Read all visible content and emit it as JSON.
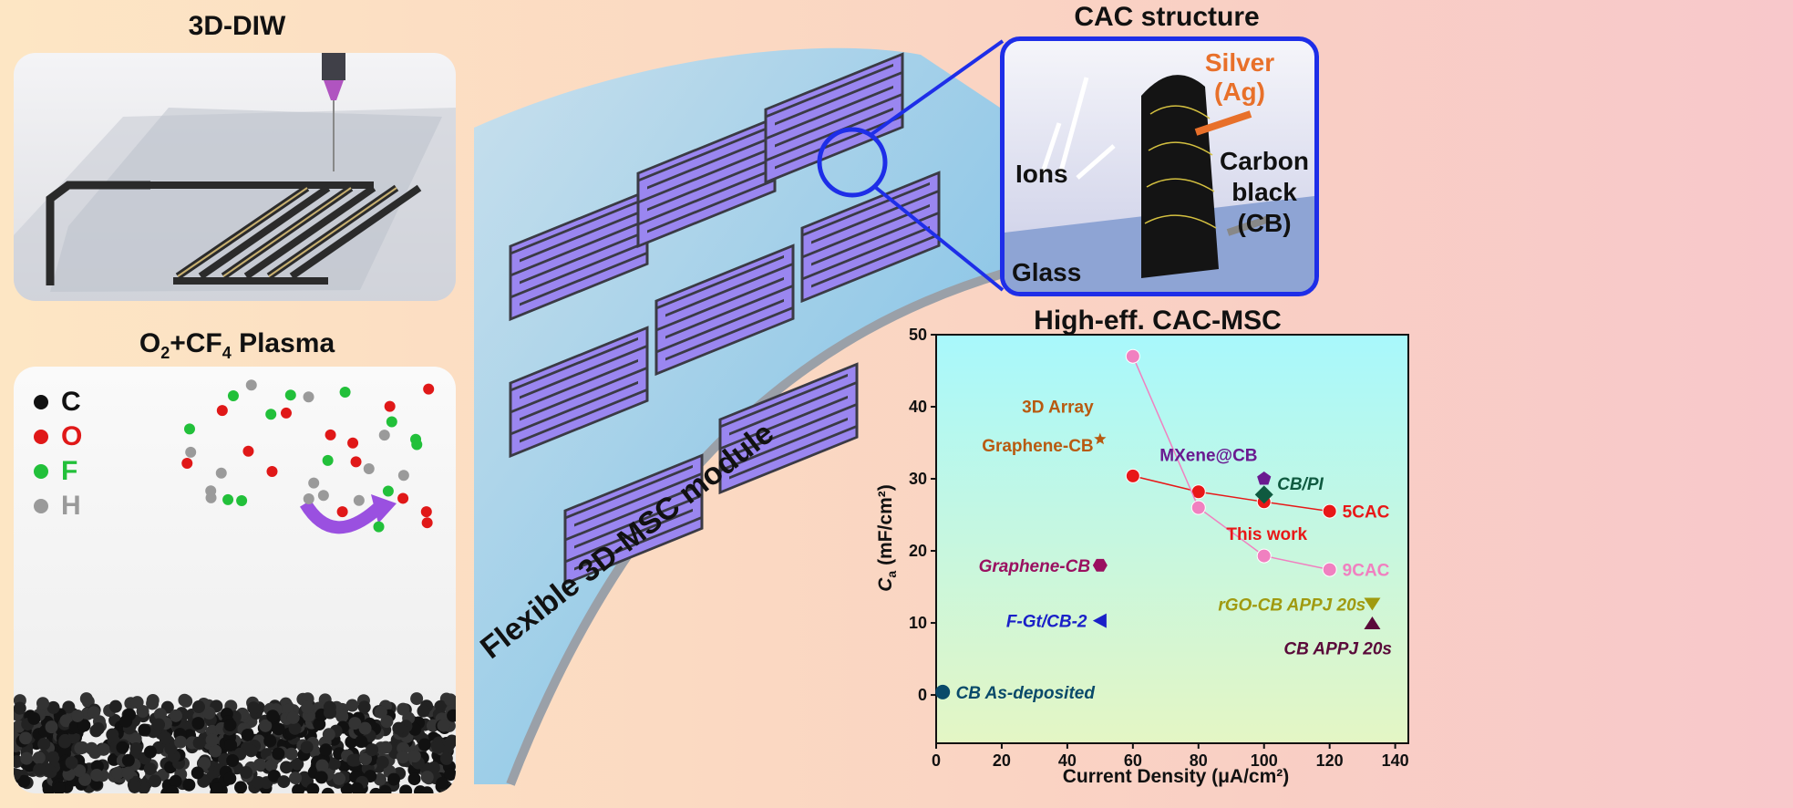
{
  "panels": {
    "diw": {
      "title": "3D-DIW"
    },
    "plasma": {
      "title_parts": [
        "O",
        "2",
        "+CF",
        "4",
        " Plasma"
      ],
      "legend": [
        {
          "label": "C",
          "color": "#111111"
        },
        {
          "label": "O",
          "color": "#e01818"
        },
        {
          "label": "F",
          "color": "#22c03a"
        },
        {
          "label": "H",
          "color": "#9a9a9a"
        }
      ]
    },
    "module": {
      "label": "Flexible 3D-MSC module"
    },
    "cac": {
      "title": "CAC structure",
      "silver": "Silver (Ag)",
      "silver_line1": "Silver",
      "silver_line2": "(Ag)",
      "ions": "Ions",
      "cb_line1": "Carbon",
      "cb_line2": "black",
      "cb_line3": "(CB)",
      "glass": "Glass",
      "silver_color": "#e8702a",
      "border_color": "#1e2ee8"
    }
  },
  "chart_data": {
    "type": "scatter",
    "title": "High-eff. CAC-MSC",
    "xlabel": "Current Density (μA/cm²)",
    "ylabel_main": "C",
    "ylabel_sub": "a",
    "ylabel_unit": " (mF/cm²)",
    "xlim": [
      0,
      144
    ],
    "ylim": [
      -6.7,
      50
    ],
    "xticks": [
      "0",
      "20",
      "40",
      "60",
      "80",
      "100",
      "120",
      "140"
    ],
    "yticks": [
      "0",
      "10",
      "20",
      "30",
      "40",
      "50"
    ],
    "grid": false,
    "series": [
      {
        "name": "5CAC",
        "marker": "sphere",
        "color": "#e81818",
        "line": true,
        "x": [
          60,
          80,
          100,
          120
        ],
        "y": [
          30.4,
          28.2,
          26.8,
          25.5
        ]
      },
      {
        "name": "9CAC",
        "marker": "sphere",
        "color": "#f080c0",
        "line": true,
        "x": [
          60,
          80,
          100,
          120
        ],
        "y": [
          47,
          26,
          19.3,
          17.4
        ]
      },
      {
        "name": "3D Array Graphene-CB",
        "marker": "star",
        "color": "#b85a10",
        "x": [
          50
        ],
        "y": [
          35.5
        ]
      },
      {
        "name": "MXene@CB",
        "marker": "pentagon",
        "color": "#6a1a90",
        "x": [
          100
        ],
        "y": [
          30
        ]
      },
      {
        "name": "CB/PI",
        "marker": "diamond",
        "color": "#0f5a40",
        "x": [
          100
        ],
        "y": [
          27.8
        ]
      },
      {
        "name": "Graphene-CB",
        "marker": "hexagon",
        "color": "#9a1060",
        "x": [
          50
        ],
        "y": [
          18
        ]
      },
      {
        "name": "F-Gt/CB-2",
        "marker": "triangle-left",
        "color": "#1a20c8",
        "x": [
          50
        ],
        "y": [
          10.3
        ]
      },
      {
        "name": "CB As-deposited",
        "marker": "circle",
        "color": "#0a4a6a",
        "x": [
          2
        ],
        "y": [
          0.4
        ]
      },
      {
        "name": "rGO-CB APPJ 20s",
        "marker": "triangle-down",
        "color": "#a09a10",
        "x": [
          133
        ],
        "y": [
          12.6
        ]
      },
      {
        "name": "CB APPJ 20s",
        "marker": "triangle-up",
        "color": "#5a0a3a",
        "x": [
          133
        ],
        "y": [
          10
        ]
      }
    ],
    "annotations": {
      "this_work": "This work",
      "array_line1": "3D Array",
      "array_line2": "Graphene-CB"
    }
  }
}
